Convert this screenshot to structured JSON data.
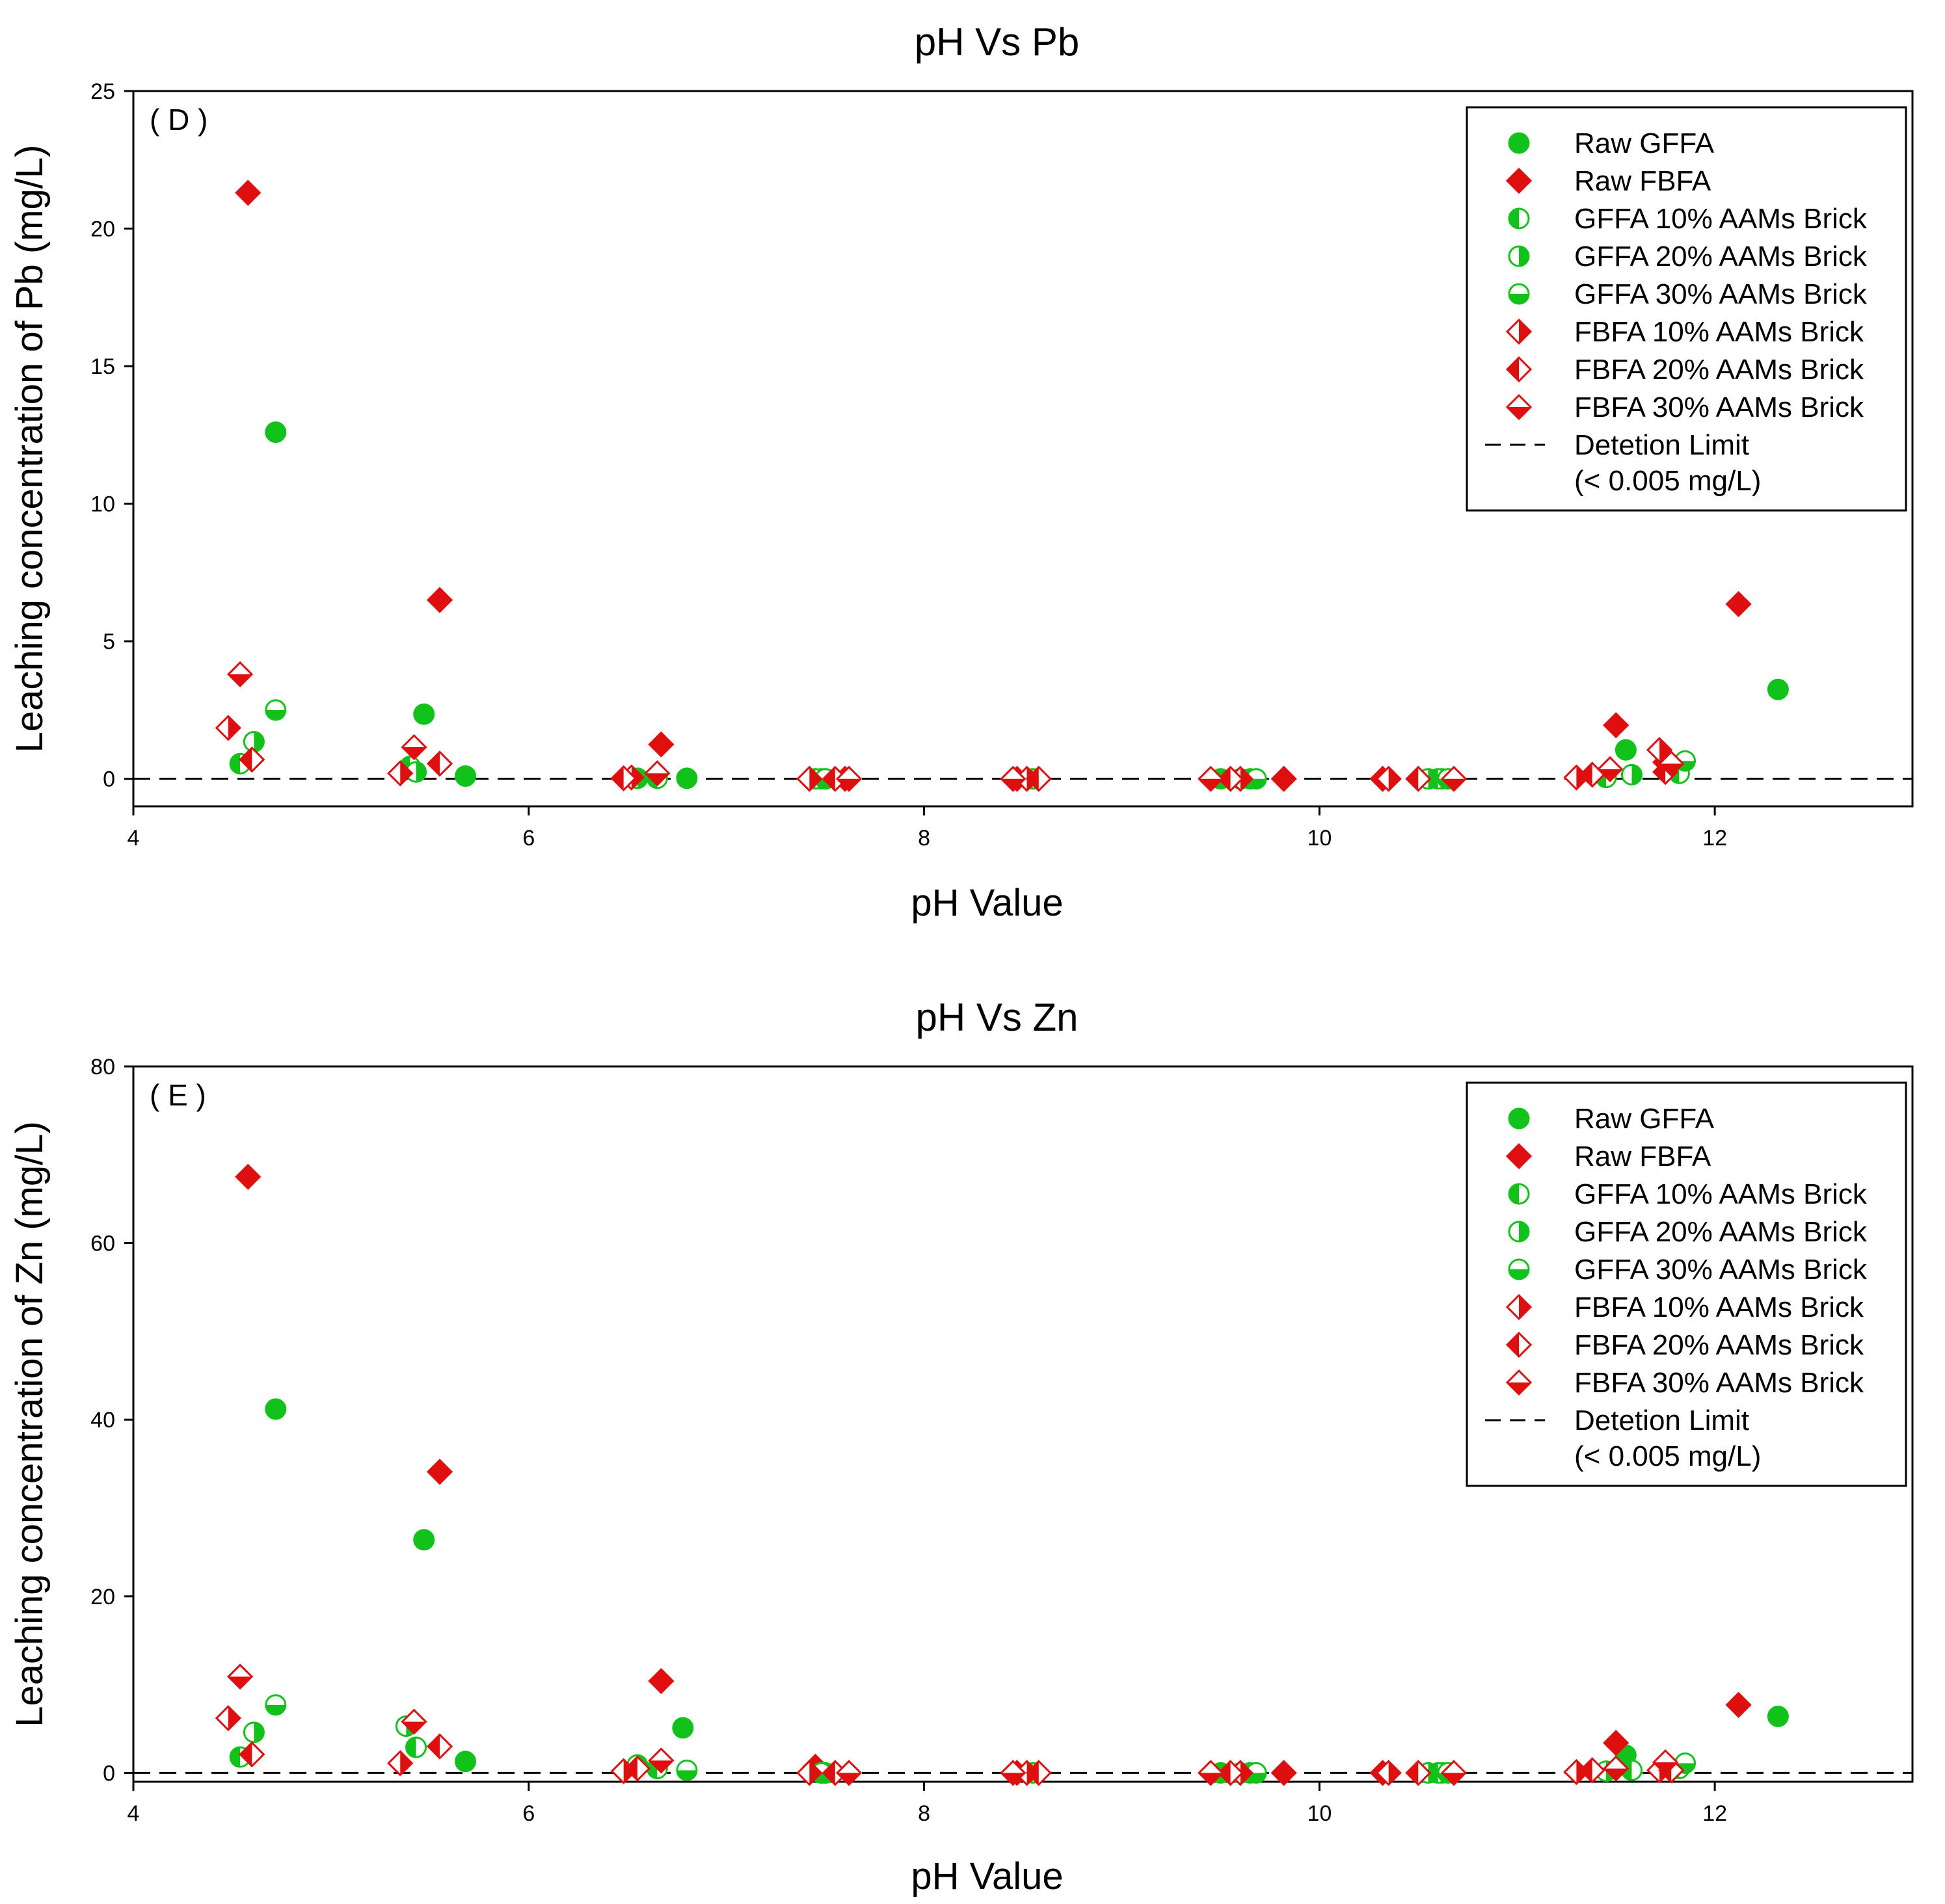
{
  "colors": {
    "green": "#11c21b",
    "red": "#e00f0f",
    "axis": "#000000"
  },
  "legend_keys": [
    "raw_gffa",
    "raw_fbfa",
    "gffa10",
    "gffa20",
    "gffa30",
    "fbfa10",
    "fbfa20",
    "fbfa30",
    "limit"
  ],
  "legend_lines": {
    "raw_gffa": "Raw GFFA",
    "raw_fbfa": "Raw FBFA",
    "gffa10": "GFFA 10% AAMs Brick",
    "gffa20": "GFFA 20% AAMs Brick",
    "gffa30": "GFFA 30% AAMs Brick",
    "fbfa10": "FBFA 10% AAMs Brick",
    "fbfa20": "FBFA 20% AAMs Brick",
    "fbfa30": "FBFA 30% AAMs Brick",
    "limit": "Detetion Limit",
    "limit_sub": "(< 0.005 mg/L)"
  },
  "chart_data": [
    {
      "id": "pb",
      "type": "scatter",
      "title": "pH Vs Pb",
      "panel_label": "( D )",
      "xlabel": "pH Value",
      "ylabel": "Leaching concentration of Pb (mg/L)",
      "xlim": [
        4,
        13
      ],
      "ylim": [
        -1,
        25
      ],
      "xticks": [
        4,
        6,
        8,
        10,
        12
      ],
      "yticks": [
        0,
        5,
        10,
        15,
        20,
        25
      ],
      "detection_limit": 0.005,
      "series": {
        "raw_gffa": [
          [
            4.72,
            12.6
          ],
          [
            5.47,
            2.35
          ],
          [
            5.68,
            0.1
          ],
          [
            6.55,
            0.02
          ],
          [
            6.8,
            0.02
          ],
          [
            7.48,
            0.0
          ],
          [
            9.5,
            0.0
          ],
          [
            10.62,
            0.0
          ],
          [
            11.55,
            1.05
          ],
          [
            12.32,
            3.25
          ]
        ],
        "raw_fbfa": [
          [
            4.58,
            21.3
          ],
          [
            5.55,
            6.5
          ],
          [
            6.67,
            1.25
          ],
          [
            7.6,
            0.0
          ],
          [
            8.47,
            0.0
          ],
          [
            9.82,
            0.0
          ],
          [
            10.32,
            0.0
          ],
          [
            11.5,
            1.95
          ],
          [
            11.75,
            0.6
          ],
          [
            12.12,
            6.35
          ]
        ],
        "gffa10": [
          [
            4.54,
            0.55
          ],
          [
            5.4,
            0.45
          ],
          [
            6.65,
            0.02
          ],
          [
            7.45,
            0.0
          ],
          [
            8.55,
            0.0
          ],
          [
            9.65,
            0.0
          ],
          [
            10.6,
            0.0
          ],
          [
            11.45,
            0.05
          ],
          [
            11.82,
            0.2
          ]
        ],
        "gffa20": [
          [
            4.61,
            1.35
          ],
          [
            5.43,
            0.25
          ],
          [
            6.55,
            0.02
          ],
          [
            7.5,
            0.0
          ],
          [
            9.6,
            0.0
          ],
          [
            10.55,
            0.0
          ],
          [
            11.58,
            0.15
          ]
        ],
        "gffa30": [
          [
            4.72,
            2.5
          ],
          [
            7.5,
            0.0
          ],
          [
            9.68,
            0.0
          ],
          [
            10.65,
            0.0
          ],
          [
            11.85,
            0.65
          ]
        ],
        "fbfa10": [
          [
            4.48,
            1.85
          ],
          [
            5.35,
            0.2
          ],
          [
            6.52,
            0.05
          ],
          [
            7.42,
            0.0
          ],
          [
            8.52,
            0.0
          ],
          [
            9.6,
            0.0
          ],
          [
            10.35,
            0.0
          ],
          [
            11.3,
            0.05
          ],
          [
            11.72,
            1.05
          ]
        ],
        "fbfa20": [
          [
            4.6,
            0.7
          ],
          [
            5.55,
            0.55
          ],
          [
            6.48,
            0.02
          ],
          [
            7.55,
            0.0
          ],
          [
            8.58,
            0.0
          ],
          [
            9.55,
            0.0
          ],
          [
            10.5,
            0.0
          ],
          [
            11.38,
            0.15
          ],
          [
            11.75,
            0.25
          ]
        ],
        "fbfa30": [
          [
            4.54,
            3.8
          ],
          [
            5.42,
            1.15
          ],
          [
            6.65,
            0.2
          ],
          [
            7.62,
            0.0
          ],
          [
            8.45,
            0.0
          ],
          [
            9.45,
            0.0
          ],
          [
            10.68,
            0.0
          ],
          [
            11.47,
            0.35
          ],
          [
            11.78,
            0.55
          ]
        ]
      }
    },
    {
      "id": "zn",
      "type": "scatter",
      "title": "pH Vs Zn",
      "panel_label": "( E )",
      "xlabel": "pH Value",
      "ylabel": "Leaching concentration of Zn (mg/L)",
      "xlim": [
        4,
        13
      ],
      "ylim": [
        -1,
        80
      ],
      "xticks": [
        4,
        6,
        8,
        10,
        12
      ],
      "yticks": [
        0,
        20,
        40,
        60,
        80
      ],
      "detection_limit": 0.005,
      "series": {
        "raw_gffa": [
          [
            4.72,
            41.2
          ],
          [
            5.47,
            26.4
          ],
          [
            5.68,
            1.3
          ],
          [
            6.78,
            5.1
          ],
          [
            7.48,
            0.0
          ],
          [
            9.5,
            0.0
          ],
          [
            10.62,
            0.0
          ],
          [
            11.55,
            2.0
          ],
          [
            12.32,
            6.4
          ]
        ],
        "raw_fbfa": [
          [
            4.58,
            67.5
          ],
          [
            5.55,
            34.1
          ],
          [
            6.67,
            10.4
          ],
          [
            7.45,
            0.7
          ],
          [
            8.47,
            0.0
          ],
          [
            9.82,
            0.0
          ],
          [
            10.32,
            0.0
          ],
          [
            11.5,
            3.4
          ],
          [
            12.12,
            7.7
          ]
        ],
        "gffa10": [
          [
            4.54,
            1.8
          ],
          [
            5.43,
            2.9
          ],
          [
            6.65,
            0.5
          ],
          [
            7.5,
            0.0
          ],
          [
            8.55,
            0.0
          ],
          [
            9.65,
            0.0
          ],
          [
            10.6,
            0.0
          ],
          [
            11.58,
            0.3
          ],
          [
            11.82,
            0.5
          ]
        ],
        "gffa20": [
          [
            4.61,
            4.6
          ],
          [
            5.38,
            5.3
          ],
          [
            6.55,
            0.9
          ],
          [
            7.5,
            0.0
          ],
          [
            9.6,
            0.0
          ],
          [
            10.55,
            0.0
          ],
          [
            11.45,
            0.2
          ]
        ],
        "gffa30": [
          [
            4.72,
            7.7
          ],
          [
            6.8,
            0.3
          ],
          [
            7.48,
            0.0
          ],
          [
            9.68,
            0.0
          ],
          [
            10.65,
            0.0
          ],
          [
            11.85,
            1.1
          ]
        ],
        "fbfa10": [
          [
            4.48,
            6.2
          ],
          [
            5.35,
            1.1
          ],
          [
            6.48,
            0.2
          ],
          [
            7.42,
            0.0
          ],
          [
            8.52,
            0.0
          ],
          [
            9.6,
            0.0
          ],
          [
            10.35,
            0.0
          ],
          [
            11.3,
            0.1
          ],
          [
            11.72,
            0.3
          ]
        ],
        "fbfa20": [
          [
            4.6,
            2.1
          ],
          [
            5.55,
            3.0
          ],
          [
            6.55,
            0.5
          ],
          [
            7.55,
            0.0
          ],
          [
            8.58,
            0.0
          ],
          [
            9.55,
            0.0
          ],
          [
            10.5,
            0.0
          ],
          [
            11.38,
            0.3
          ],
          [
            11.78,
            0.3
          ]
        ],
        "fbfa30": [
          [
            4.54,
            10.9
          ],
          [
            5.42,
            5.8
          ],
          [
            6.67,
            1.4
          ],
          [
            7.62,
            0.0
          ],
          [
            8.45,
            0.0
          ],
          [
            9.45,
            0.0
          ],
          [
            10.68,
            0.0
          ],
          [
            11.5,
            0.5
          ],
          [
            11.75,
            1.2
          ]
        ]
      }
    }
  ]
}
